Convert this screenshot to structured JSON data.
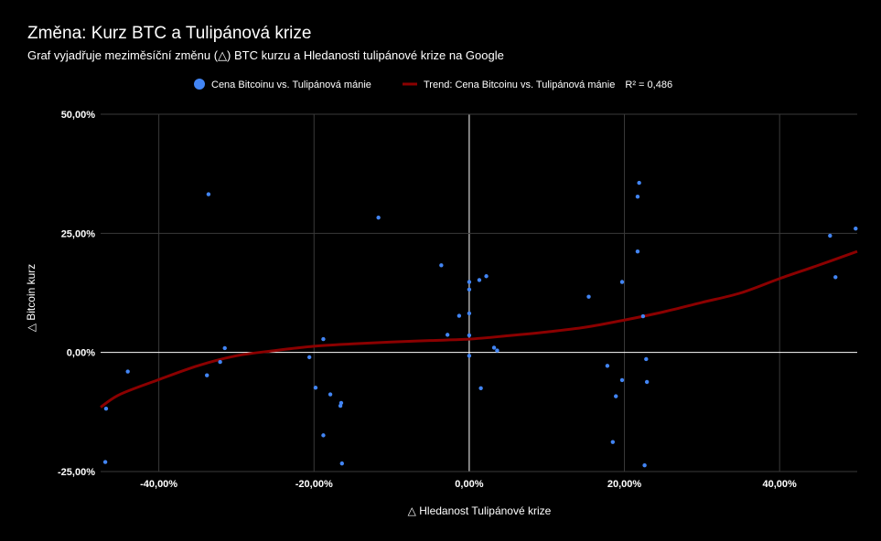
{
  "title": "Změna: Kurz BTC a Tulipánová krize",
  "subtitle": "Graf vyjadřuje meziměsíční změnu (△) BTC kurzu a Hledanosti tulipánové krize na Google",
  "chart_data": {
    "type": "scatter",
    "xlabel": "△ Hledanost Tulipánové krize",
    "ylabel": "△ Bitcoin kurz",
    "xlim": [
      -0.475,
      0.5
    ],
    "ylim": [
      -0.25,
      0.5
    ],
    "x_ticks": [
      -0.4,
      -0.2,
      0.0,
      0.2,
      0.4
    ],
    "x_tick_labels": [
      "-40,00%",
      "-20,00%",
      "0,00%",
      "20,00%",
      "40,00%"
    ],
    "y_ticks": [
      -0.25,
      0.0,
      0.25,
      0.5
    ],
    "y_tick_labels": [
      "-25,00%",
      "0,00%",
      "25,00%",
      "50,00%"
    ],
    "grid": true,
    "legend_position": "top",
    "colors": {
      "series": "#4285f4",
      "trend": "#8b0000",
      "grid": "#3a3a3a",
      "zero": "#ffffff"
    },
    "series": [
      {
        "name": "Cena Bitcoinu vs. Tulipánová mánie",
        "points": [
          [
            -0.468,
            -0.118
          ],
          [
            -0.469,
            -0.23
          ],
          [
            -0.44,
            -0.04
          ],
          [
            -0.336,
            0.332
          ],
          [
            -0.338,
            -0.048
          ],
          [
            -0.321,
            -0.02
          ],
          [
            -0.315,
            0.009
          ],
          [
            -0.206,
            -0.01
          ],
          [
            -0.198,
            -0.074
          ],
          [
            -0.188,
            0.028
          ],
          [
            -0.188,
            -0.174
          ],
          [
            -0.179,
            -0.088
          ],
          [
            -0.166,
            -0.112
          ],
          [
            -0.165,
            -0.106
          ],
          [
            -0.164,
            -0.233
          ],
          [
            -0.117,
            0.283
          ],
          [
            -0.036,
            0.183
          ],
          [
            -0.028,
            0.037
          ],
          [
            -0.013,
            0.077
          ],
          [
            0.0,
            0.148
          ],
          [
            0.0,
            0.132
          ],
          [
            0.0,
            0.082
          ],
          [
            0.0,
            0.036
          ],
          [
            0.0,
            -0.007
          ],
          [
            0.013,
            0.152
          ],
          [
            0.015,
            -0.075
          ],
          [
            0.022,
            0.16
          ],
          [
            0.032,
            0.01
          ],
          [
            0.036,
            0.004
          ],
          [
            0.154,
            0.117
          ],
          [
            0.178,
            -0.028
          ],
          [
            0.185,
            -0.188
          ],
          [
            0.189,
            -0.092
          ],
          [
            0.197,
            0.148
          ],
          [
            0.197,
            -0.058
          ],
          [
            0.217,
            0.212
          ],
          [
            0.217,
            0.327
          ],
          [
            0.219,
            0.356
          ],
          [
            0.224,
            0.076
          ],
          [
            0.226,
            -0.237
          ],
          [
            0.228,
            -0.014
          ],
          [
            0.229,
            -0.062
          ],
          [
            0.465,
            0.245
          ],
          [
            0.472,
            0.158
          ],
          [
            0.498,
            0.26
          ]
        ]
      }
    ],
    "trendline": {
      "name": "Trend: Cena Bitcoinu vs. Tulipánová mánie",
      "r_squared_label": "R² = 0,486",
      "points": [
        [
          -0.475,
          -0.115
        ],
        [
          -0.45,
          -0.088
        ],
        [
          -0.4,
          -0.057
        ],
        [
          -0.35,
          -0.028
        ],
        [
          -0.3,
          -0.007
        ],
        [
          -0.25,
          0.004
        ],
        [
          -0.2,
          0.013
        ],
        [
          -0.15,
          0.018
        ],
        [
          -0.1,
          0.022
        ],
        [
          -0.05,
          0.025
        ],
        [
          0.0,
          0.028
        ],
        [
          0.05,
          0.035
        ],
        [
          0.1,
          0.043
        ],
        [
          0.15,
          0.053
        ],
        [
          0.2,
          0.068
        ],
        [
          0.25,
          0.085
        ],
        [
          0.3,
          0.105
        ],
        [
          0.35,
          0.125
        ],
        [
          0.4,
          0.155
        ],
        [
          0.45,
          0.183
        ],
        [
          0.5,
          0.212
        ]
      ]
    }
  }
}
